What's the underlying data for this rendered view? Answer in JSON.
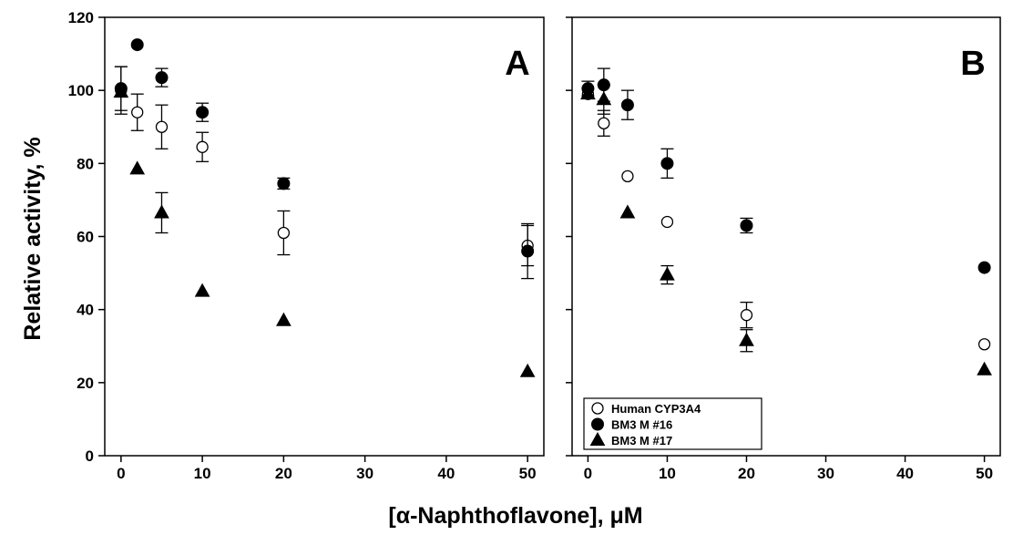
{
  "chart_data": {
    "type": "scatter",
    "xlabel": "[α-Naphthoflavone], μM",
    "ylabel": "Relative activity, %",
    "x_ticks": [
      "0",
      "10",
      "20",
      "30",
      "40",
      "50"
    ],
    "y_ticks": [
      "0",
      "20",
      "40",
      "60",
      "80",
      "100",
      "120"
    ],
    "xlim": [
      -2,
      52
    ],
    "ylim": [
      0,
      120
    ],
    "grid": false,
    "legend": {
      "panel": "B",
      "placement": "bottom-left",
      "entries": [
        {
          "label": "Human CYP3A4",
          "marker": "open-circle"
        },
        {
          "label": "BM3 M #16",
          "marker": "filled-circle"
        },
        {
          "label": "BM3 M #17",
          "marker": "filled-triangle"
        }
      ]
    },
    "panels": [
      {
        "label": "A",
        "series": [
          {
            "name": "Human CYP3A4",
            "marker": "open-circle",
            "points": [
              {
                "x": 0,
                "y": 100,
                "err": 6.5
              },
              {
                "x": 2,
                "y": 94,
                "err": 5
              },
              {
                "x": 5,
                "y": 90,
                "err": 6
              },
              {
                "x": 10,
                "y": 84.5,
                "err": 4
              },
              {
                "x": 20,
                "y": 61,
                "err": 6
              },
              {
                "x": 50,
                "y": 57.5,
                "err": 5.5
              }
            ]
          },
          {
            "name": "BM3 M #16",
            "marker": "filled-circle",
            "points": [
              {
                "x": 0,
                "y": 100.5,
                "err": 6
              },
              {
                "x": 2,
                "y": 112.5,
                "err": 0
              },
              {
                "x": 5,
                "y": 103.5,
                "err": 2.5
              },
              {
                "x": 10,
                "y": 94,
                "err": 2.5
              },
              {
                "x": 20,
                "y": 74.5,
                "err": 1.5
              },
              {
                "x": 50,
                "y": 56,
                "err": 7.5
              }
            ]
          },
          {
            "name": "BM3 M #17",
            "marker": "filled-triangle",
            "points": [
              {
                "x": 0,
                "y": 99.5,
                "err": 0
              },
              {
                "x": 2,
                "y": 78.5,
                "err": 0
              },
              {
                "x": 5,
                "y": 66.5,
                "err": 5.5
              },
              {
                "x": 10,
                "y": 45,
                "err": 0
              },
              {
                "x": 20,
                "y": 37,
                "err": 0
              },
              {
                "x": 50,
                "y": 23,
                "err": 0
              }
            ]
          }
        ]
      },
      {
        "label": "B",
        "series": [
          {
            "name": "Human CYP3A4",
            "marker": "open-circle",
            "points": [
              {
                "x": 0,
                "y": 99,
                "err": 0
              },
              {
                "x": 2,
                "y": 91,
                "err": 3.5
              },
              {
                "x": 5,
                "y": 76.5,
                "err": 0
              },
              {
                "x": 10,
                "y": 64,
                "err": 0
              },
              {
                "x": 20,
                "y": 38.5,
                "err": 3.5
              },
              {
                "x": 50,
                "y": 30.5,
                "err": 0
              }
            ]
          },
          {
            "name": "BM3 M #16",
            "marker": "filled-circle",
            "points": [
              {
                "x": 0,
                "y": 100.5,
                "err": 2
              },
              {
                "x": 2,
                "y": 101.5,
                "err": 4.5
              },
              {
                "x": 5,
                "y": 96,
                "err": 4
              },
              {
                "x": 10,
                "y": 80,
                "err": 4
              },
              {
                "x": 20,
                "y": 63,
                "err": 2
              },
              {
                "x": 50,
                "y": 51.5,
                "err": 0
              }
            ]
          },
          {
            "name": "BM3 M #17",
            "marker": "filled-triangle",
            "points": [
              {
                "x": 0,
                "y": 99,
                "err": 0
              },
              {
                "x": 2,
                "y": 97.5,
                "err": 4
              },
              {
                "x": 5,
                "y": 66.5,
                "err": 0
              },
              {
                "x": 10,
                "y": 49.5,
                "err": 2.5
              },
              {
                "x": 20,
                "y": 31.5,
                "err": 3
              },
              {
                "x": 50,
                "y": 23.5,
                "err": 0
              }
            ]
          }
        ]
      }
    ]
  }
}
